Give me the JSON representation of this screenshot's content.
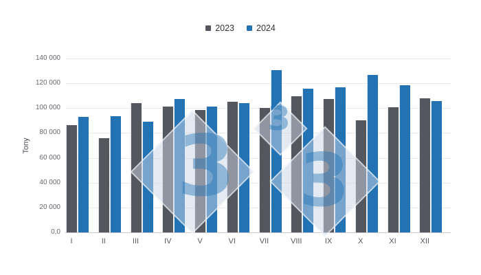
{
  "chart_data": {
    "type": "bar",
    "title": "",
    "xlabel": "",
    "ylabel": "Tony",
    "categories": [
      "I",
      "II",
      "III",
      "IV",
      "V",
      "VI",
      "VII",
      "VIII",
      "IX",
      "X",
      "XI",
      "XII"
    ],
    "series": [
      {
        "name": "2023",
        "color": "#54575e",
        "values": [
          86500,
          76000,
          104000,
          101500,
          98500,
          105000,
          100000,
          109500,
          107500,
          90000,
          100500,
          108000
        ]
      },
      {
        "name": "2024",
        "color": "#2272b4",
        "values": [
          93000,
          93500,
          89000,
          107500,
          101500,
          104000,
          130500,
          115500,
          117000,
          127000,
          118500,
          105500
        ]
      }
    ],
    "ylim": [
      0,
      140000
    ],
    "ytick_step": 20000,
    "ytick_labels": [
      "140 000",
      "120 000",
      "100 000",
      "80 000",
      "60 000",
      "40 000",
      "20 000",
      "0,0"
    ],
    "grid": true,
    "legend_position": "top"
  },
  "watermark": {
    "glyph": "3"
  }
}
